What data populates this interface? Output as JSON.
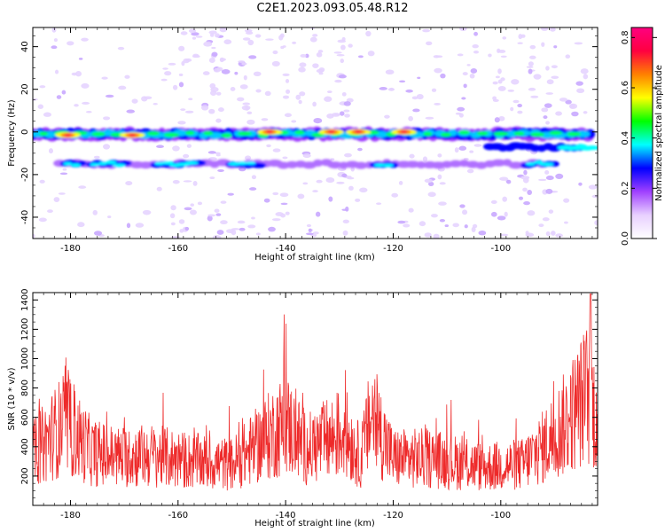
{
  "title": "C2E1.2023.093.05.48.R12",
  "chart_data": [
    {
      "type": "heatmap",
      "xlabel": "Height of straight line (km)",
      "ylabel": "Frequency (Hz)",
      "xlim": [
        -187,
        -82
      ],
      "ylim": [
        -50,
        49
      ],
      "xticks": [
        -180,
        -160,
        -140,
        -120,
        -100
      ],
      "yticks": [
        -40,
        -20,
        0,
        20,
        40
      ],
      "colorbar": {
        "label": "Normalized spectral amplitude",
        "range": [
          0.0,
          0.84
        ],
        "ticks": [
          "0.0",
          "0.2",
          "0.4",
          "0.6",
          "0.8"
        ],
        "colors": [
          "#ffffff",
          "#e8d0ff",
          "#a040ff",
          "#0000ff",
          "#00ffff",
          "#00ff00",
          "#ffff00",
          "#ff8000",
          "#ff0040",
          "#ff0080"
        ]
      },
      "bands": [
        {
          "name": "main",
          "freq_hz": -1,
          "x_range": [
            -187,
            -83
          ],
          "peak_amplitude": 0.84
        },
        {
          "name": "secondary",
          "freq_hz": -15,
          "x_range": [
            -182,
            -90
          ],
          "peak_amplitude": 0.45
        },
        {
          "name": "low-right",
          "freq_hz": -7,
          "x_range": [
            -102,
            -83
          ],
          "peak_amplitude": 0.4
        }
      ],
      "peaks": [
        {
          "x": -180.5,
          "freq": -1.5
        },
        {
          "x": -168.5,
          "freq": -1.5
        },
        {
          "x": -143,
          "freq": 0
        },
        {
          "x": -131.5,
          "freq": 0
        },
        {
          "x": -126.5,
          "freq": 0
        },
        {
          "x": -118,
          "freq": 0
        }
      ]
    },
    {
      "type": "line",
      "xlabel": "Height of straight line (km)",
      "ylabel": "SNR (10 * v/v)",
      "xlim": [
        -187,
        -82
      ],
      "ylim": [
        0,
        1450
      ],
      "xticks": [
        -180,
        -160,
        -140,
        -120,
        -100
      ],
      "yticks": [
        200,
        400,
        600,
        800,
        1000,
        1200,
        1400
      ],
      "color": "#ee2a2a",
      "series_profile": [
        {
          "x": -187,
          "y": 350
        },
        {
          "x": -181,
          "y": 560
        },
        {
          "x": -176,
          "y": 360
        },
        {
          "x": -171,
          "y": 330
        },
        {
          "x": -165,
          "y": 340
        },
        {
          "x": -157,
          "y": 300
        },
        {
          "x": -150,
          "y": 280
        },
        {
          "x": -147,
          "y": 360
        },
        {
          "x": -140,
          "y": 560
        },
        {
          "x": -136,
          "y": 380
        },
        {
          "x": -129,
          "y": 500
        },
        {
          "x": -126,
          "y": 320
        },
        {
          "x": -124,
          "y": 620
        },
        {
          "x": -120,
          "y": 320
        },
        {
          "x": -113,
          "y": 320
        },
        {
          "x": -103,
          "y": 260
        },
        {
          "x": -96,
          "y": 280
        },
        {
          "x": -92,
          "y": 400
        },
        {
          "x": -88,
          "y": 560
        },
        {
          "x": -84,
          "y": 760
        },
        {
          "x": -82,
          "y": 600
        }
      ]
    }
  ]
}
